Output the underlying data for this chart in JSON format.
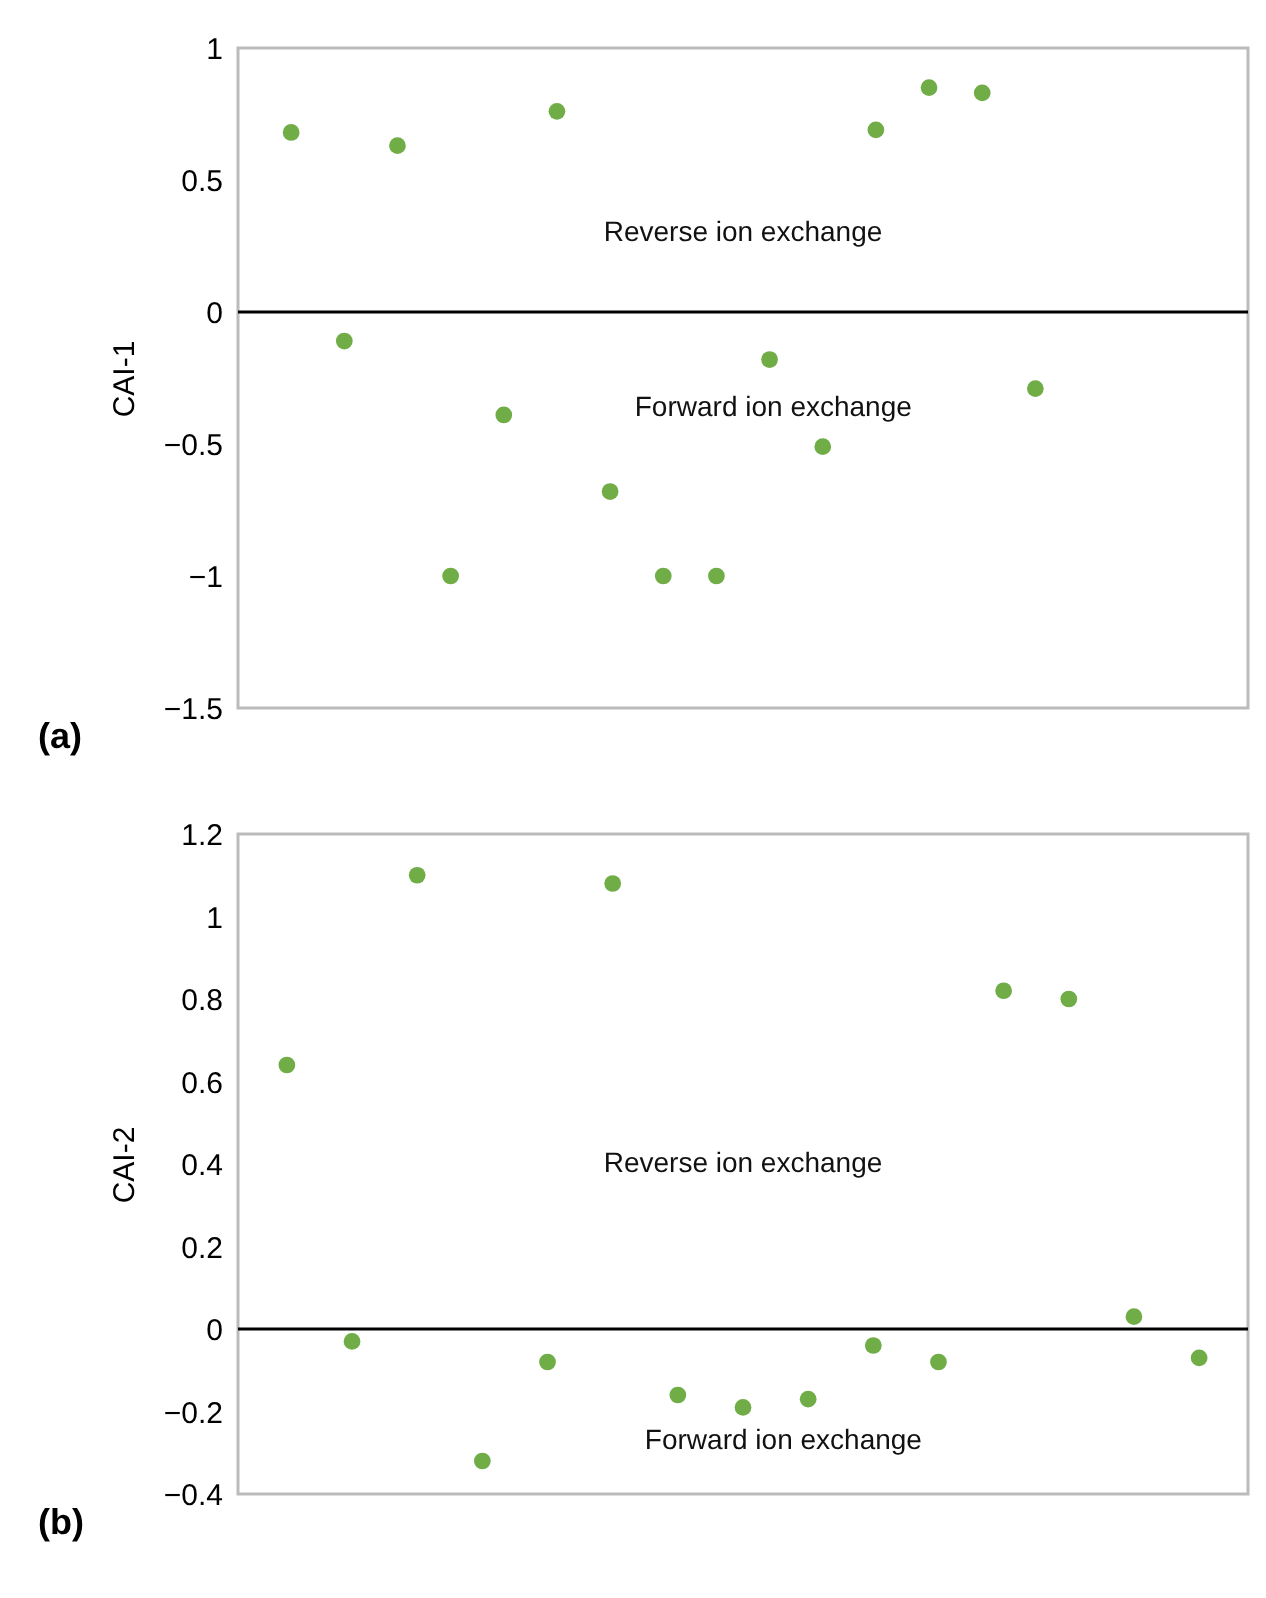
{
  "chart_data": [
    {
      "type": "scatter",
      "title": "(a)",
      "ylabel": "CAI-1",
      "categories": [
        null,
        null,
        null,
        null,
        null,
        null,
        null,
        null,
        null,
        null,
        null,
        null,
        null,
        null,
        null,
        null,
        null,
        null
      ],
      "series": [
        {
          "color": "#70ad47",
          "values": [
            0.68,
            -0.11,
            0.63,
            -1.0,
            -0.39,
            0.76,
            -0.68,
            -1.0,
            -1.0,
            -0.18,
            -0.51,
            0.69,
            0.85,
            0.83,
            -0.29,
            null,
            null,
            null
          ]
        }
      ],
      "ylim": [
        -1.5,
        1
      ],
      "yticks": [
        -1.5,
        -1,
        -0.5,
        0,
        0.5,
        1
      ],
      "tick_labels": "y",
      "marker": "circle",
      "ref_lines": [
        {
          "axis": "y",
          "value": 0,
          "color": "#000000"
        }
      ],
      "annotations": [
        "Reverse ion exchange",
        "Forward ion exchange"
      ]
    },
    {
      "type": "scatter",
      "title": "(b)",
      "ylabel": "CAI-2",
      "categories": [
        null,
        null,
        null,
        null,
        null,
        null,
        null,
        null,
        null,
        null,
        null,
        null,
        null,
        null,
        null
      ],
      "series": [
        {
          "color": "#70ad47",
          "values": [
            0.64,
            -0.03,
            1.1,
            -0.32,
            -0.08,
            1.08,
            -0.16,
            -0.19,
            -0.17,
            -0.04,
            -0.08,
            0.82,
            0.8,
            0.03,
            -0.07
          ]
        }
      ],
      "ylim": [
        -0.4,
        1.2
      ],
      "yticks": [
        -0.4,
        -0.2,
        0,
        0.2,
        0.4,
        0.6,
        0.8,
        1,
        1.2
      ],
      "tick_labels": "y",
      "marker": "circle",
      "ref_lines": [
        {
          "axis": "y",
          "value": 0,
          "color": "#000000"
        }
      ],
      "annotations": [
        "Reverse ion exchange",
        "Forward ion exchange"
      ]
    }
  ]
}
